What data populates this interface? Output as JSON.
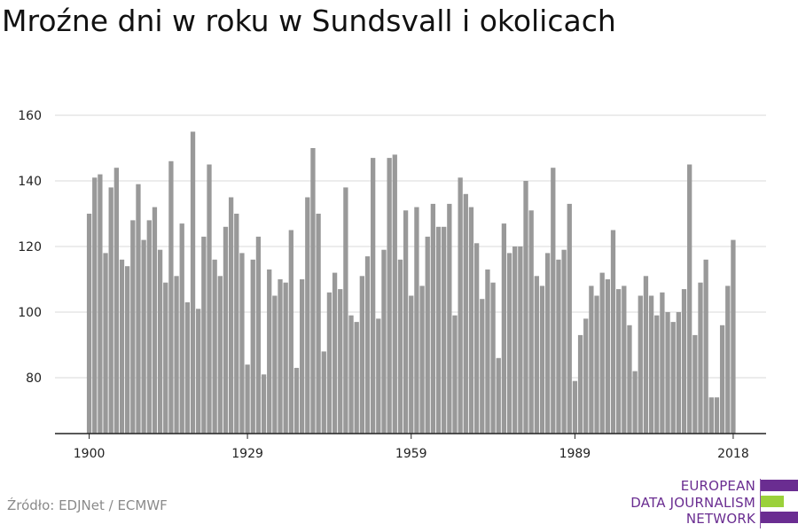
{
  "title": "Mroźne dni w roku w Sundsvall i okolicach",
  "source": "Źródło: EDJNet / ECMWF",
  "logo": {
    "line1": "EUROPEAN",
    "line2": "DATA JOURNALISM",
    "line3": "NETWORK",
    "colors": [
      "#6a2d91",
      "#9bd13b",
      "#6a2d91"
    ]
  },
  "chart_data": {
    "type": "bar",
    "title": "Mroźne dni w roku w Sundsvall i okolicach",
    "xlabel": "",
    "ylabel": "",
    "ylim": [
      63,
      165
    ],
    "yticks": [
      80,
      100,
      120,
      140,
      160
    ],
    "xticks": [
      1900,
      1929,
      1959,
      1989,
      2018
    ],
    "grid": true,
    "bar_color": "#999999",
    "x": [
      1900,
      1901,
      1902,
      1903,
      1904,
      1905,
      1906,
      1907,
      1908,
      1909,
      1910,
      1911,
      1912,
      1913,
      1914,
      1915,
      1916,
      1917,
      1918,
      1919,
      1920,
      1921,
      1922,
      1923,
      1924,
      1925,
      1926,
      1927,
      1928,
      1929,
      1930,
      1931,
      1932,
      1933,
      1934,
      1935,
      1936,
      1937,
      1938,
      1939,
      1940,
      1941,
      1942,
      1943,
      1944,
      1945,
      1946,
      1947,
      1948,
      1949,
      1950,
      1951,
      1952,
      1953,
      1954,
      1955,
      1956,
      1957,
      1958,
      1959,
      1960,
      1961,
      1962,
      1963,
      1964,
      1965,
      1966,
      1967,
      1968,
      1969,
      1970,
      1971,
      1972,
      1973,
      1974,
      1975,
      1976,
      1977,
      1978,
      1979,
      1980,
      1981,
      1982,
      1983,
      1984,
      1985,
      1986,
      1987,
      1988,
      1989,
      1990,
      1991,
      1992,
      1993,
      1994,
      1995,
      1996,
      1997,
      1998,
      1999,
      2000,
      2001,
      2002,
      2003,
      2004,
      2005,
      2006,
      2007,
      2008,
      2009,
      2010,
      2011,
      2012,
      2013,
      2014,
      2015,
      2016,
      2017,
      2018
    ],
    "values": [
      130,
      141,
      142,
      118,
      138,
      144,
      116,
      114,
      128,
      139,
      122,
      128,
      132,
      119,
      109,
      146,
      111,
      127,
      103,
      155,
      101,
      123,
      145,
      116,
      111,
      126,
      135,
      130,
      118,
      84,
      116,
      123,
      81,
      113,
      105,
      110,
      109,
      125,
      83,
      110,
      135,
      150,
      130,
      88,
      106,
      112,
      107,
      138,
      99,
      97,
      111,
      117,
      147,
      98,
      119,
      147,
      148,
      116,
      131,
      105,
      132,
      108,
      123,
      133,
      126,
      126,
      133,
      99,
      141,
      136,
      132,
      121,
      104,
      113,
      109,
      86,
      127,
      118,
      120,
      120,
      140,
      131,
      111,
      108,
      118,
      144,
      116,
      119,
      133,
      79,
      93,
      98,
      108,
      105,
      112,
      110,
      125,
      107,
      108,
      96,
      82,
      105,
      111,
      105,
      99,
      106,
      100,
      97,
      100,
      107,
      145,
      93,
      109,
      116,
      74,
      74,
      96,
      108,
      122
    ]
  }
}
